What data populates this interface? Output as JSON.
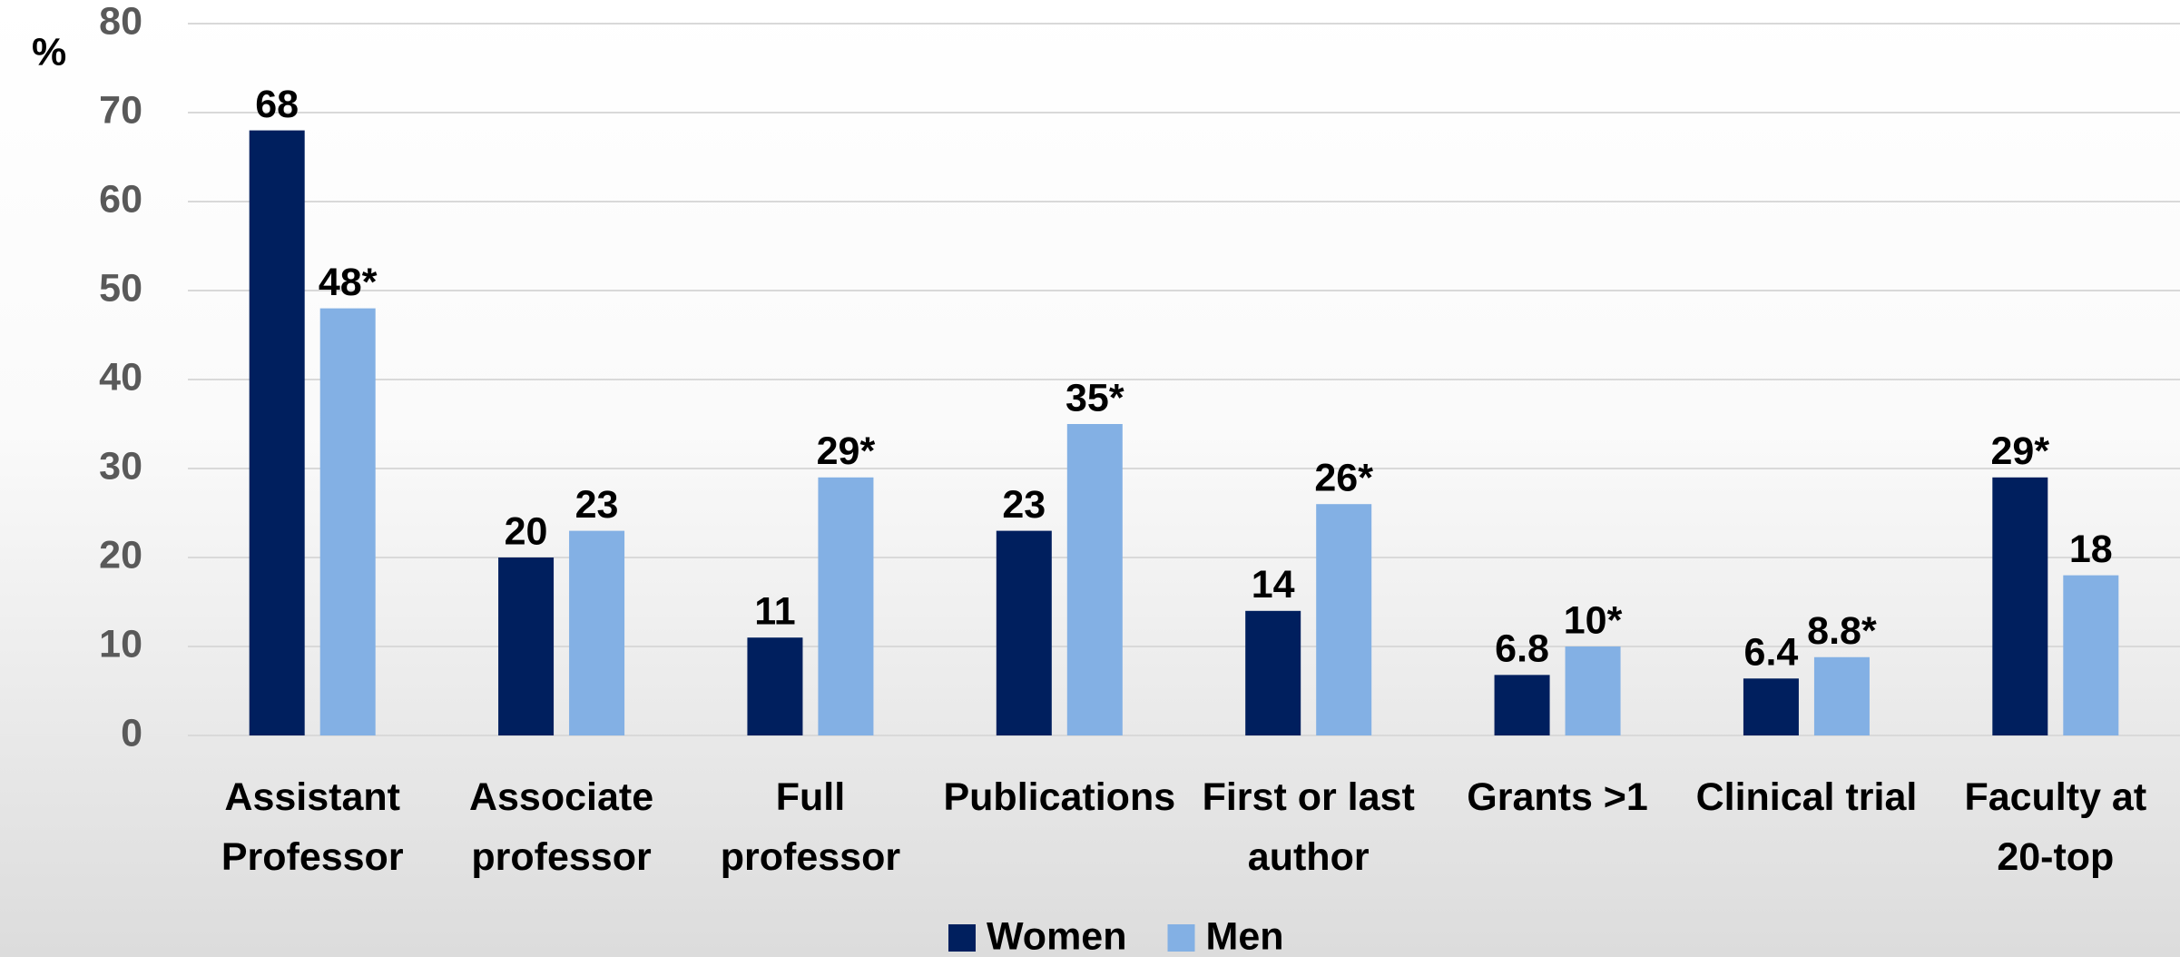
{
  "chart_data": {
    "type": "bar",
    "ylabel": "%",
    "categories": [
      "Assistant\nProfessor",
      "Associate\nprofessor",
      "Full\nprofessor",
      "Publications",
      "First or last\nauthor",
      "Grants >1",
      "Clinical trial",
      "Faculty at\n20-top"
    ],
    "series": [
      {
        "name": "Women",
        "color": "#001f5e",
        "values": [
          68,
          20,
          11,
          23,
          14,
          6.8,
          6.4,
          29
        ],
        "value_labels": [
          "68",
          "20",
          "11",
          "23",
          "14",
          "6.8",
          "6.4",
          "29*"
        ]
      },
      {
        "name": "Men",
        "color": "#83b0e4",
        "values": [
          48,
          23,
          29,
          35,
          26,
          10,
          8.8,
          18
        ],
        "value_labels": [
          "48*",
          "23",
          "29*",
          "35*",
          "26*",
          "10*",
          "8.8*",
          "18"
        ]
      }
    ],
    "ylim": [
      0,
      80
    ],
    "yticks": [
      0,
      10,
      20,
      30,
      40,
      50,
      60,
      70,
      80
    ],
    "grid": true,
    "legend": "bottom"
  }
}
